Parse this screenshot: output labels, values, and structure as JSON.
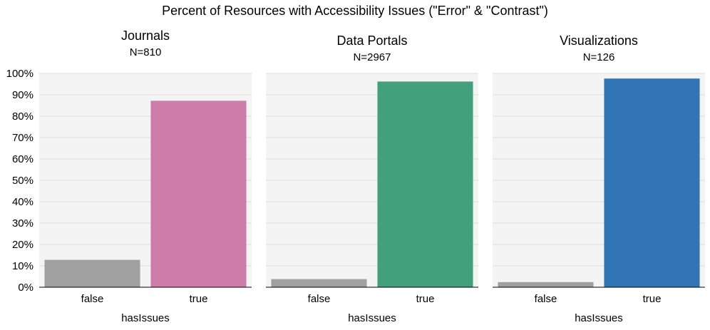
{
  "title": "Percent of Resources with Accessibility Issues (\"Error\" & \"Contrast\")",
  "chart_data": [
    {
      "type": "bar",
      "title": "Journals",
      "subtitle": "N=810",
      "xlabel": "hasIssues",
      "ylabel": "",
      "categories": [
        "false",
        "true"
      ],
      "values": [
        12.8,
        87.2
      ],
      "colors": [
        "#a0a0a0",
        "#cc7daa"
      ],
      "ylim": [
        0,
        100
      ],
      "yticks": [
        "0%",
        "10%",
        "20%",
        "30%",
        "40%",
        "50%",
        "60%",
        "70%",
        "80%",
        "90%",
        "100%"
      ],
      "grid": true
    },
    {
      "type": "bar",
      "title": "Data Portals",
      "subtitle": "N=2967",
      "xlabel": "hasIssues",
      "ylabel": "",
      "categories": [
        "false",
        "true"
      ],
      "values": [
        3.8,
        96.2
      ],
      "colors": [
        "#a0a0a0",
        "#42a07d"
      ],
      "ylim": [
        0,
        100
      ],
      "grid": true
    },
    {
      "type": "bar",
      "title": "Visualizations",
      "subtitle": "N=126",
      "xlabel": "hasIssues",
      "ylabel": "",
      "categories": [
        "false",
        "true"
      ],
      "values": [
        2.4,
        97.6
      ],
      "colors": [
        "#a0a0a0",
        "#3275b4"
      ],
      "ylim": [
        0,
        100
      ],
      "grid": true
    }
  ]
}
